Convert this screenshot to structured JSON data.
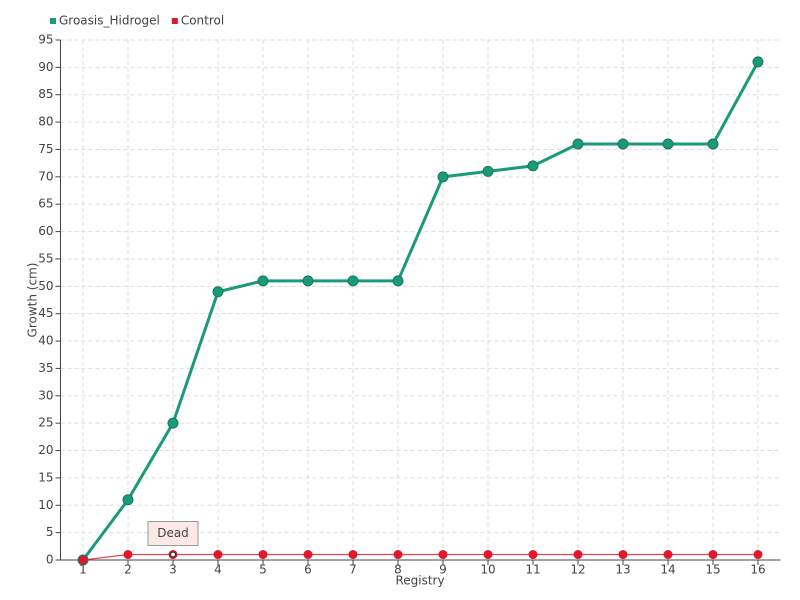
{
  "chart_data": {
    "type": "line",
    "x_label": "Registry",
    "y_label": "Growth (cm)",
    "categories": [
      "1",
      "2",
      "3",
      "4",
      "5",
      "6",
      "7",
      "8",
      "9",
      "10",
      "11",
      "12",
      "13",
      "14",
      "15",
      "16"
    ],
    "series": [
      {
        "name": "Groasis_Hidrogel",
        "color": "#1a9a78",
        "values": [
          0,
          11,
          25,
          49,
          51,
          51,
          51,
          51,
          70,
          71,
          72,
          76,
          76,
          76,
          76,
          91
        ]
      },
      {
        "name": "Control",
        "color": "#e0182d",
        "values": [
          0,
          1,
          1,
          1,
          1,
          1,
          1,
          1,
          1,
          1,
          1,
          1,
          1,
          1,
          1,
          1
        ]
      }
    ],
    "annotations": [
      {
        "text": "Dead",
        "x": "3"
      }
    ],
    "ylim": [
      0,
      95
    ],
    "yticks": [
      0,
      5,
      10,
      15,
      20,
      25,
      30,
      35,
      40,
      45,
      50,
      55,
      60,
      65,
      70,
      75,
      80,
      85,
      90,
      95
    ],
    "grid": true,
    "legend": "top-left"
  }
}
